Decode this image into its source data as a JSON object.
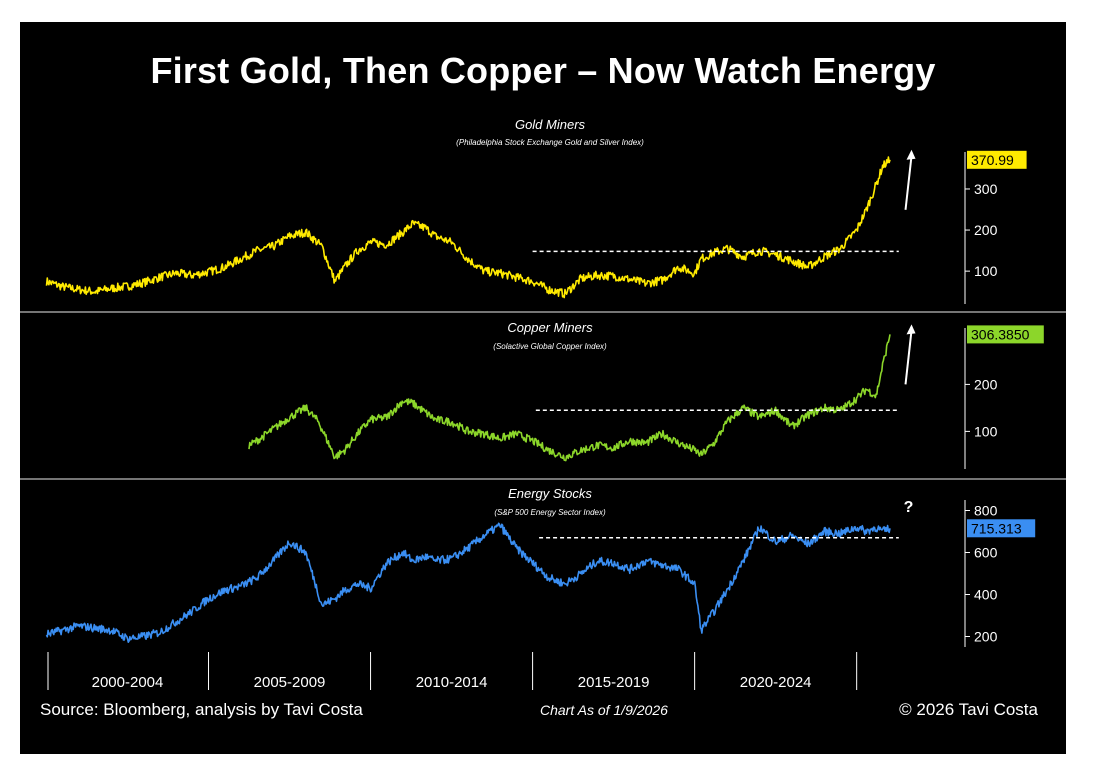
{
  "title": "First Gold, Then Copper – Now Watch Energy",
  "footer": {
    "source": "Source: Bloomberg, analysis by Tavi Costa",
    "date": "Chart As of 1/9/2026",
    "copyright": "© 2026 Tavi Costa"
  },
  "colors": {
    "background": "#000000",
    "gold": "#ffea00",
    "copper": "#8cd62a",
    "energy": "#3a8ef2",
    "axis": "#ffffff"
  },
  "chart_data": [
    {
      "type": "line",
      "name": "gold",
      "title": "Gold Miners",
      "subtitle": "(Philadelphia Stock Exchange Gold and Silver Index)",
      "color": "#ffea00",
      "last_value_label": "370.99",
      "ylim": [
        20,
        390
      ],
      "yticks": [
        100,
        200,
        300
      ],
      "ytick_labels": [
        "100",
        "200",
        "300"
      ],
      "reference_line": {
        "value": 148,
        "x_start": 2015.0
      },
      "annotation": "up-arrow",
      "x": [
        2000.0,
        2000.5,
        2001.0,
        2001.5,
        2002.0,
        2002.5,
        2003.0,
        2003.5,
        2004.0,
        2004.5,
        2005.0,
        2005.5,
        2006.0,
        2006.5,
        2007.0,
        2007.5,
        2008.0,
        2008.5,
        2008.9,
        2009.2,
        2009.6,
        2010.0,
        2010.5,
        2011.0,
        2011.3,
        2011.7,
        2012.0,
        2012.5,
        2013.0,
        2013.5,
        2014.0,
        2014.5,
        2015.0,
        2015.5,
        2016.0,
        2016.5,
        2017.0,
        2017.5,
        2018.0,
        2018.5,
        2019.0,
        2019.5,
        2020.0,
        2020.2,
        2020.6,
        2021.0,
        2021.5,
        2022.0,
        2022.5,
        2023.0,
        2023.5,
        2024.0,
        2024.5,
        2025.0,
        2025.3,
        2025.6,
        2025.8,
        2026.03
      ],
      "values": [
        75,
        62,
        55,
        50,
        58,
        63,
        72,
        85,
        95,
        90,
        98,
        110,
        130,
        150,
        160,
        185,
        195,
        160,
        75,
        110,
        150,
        170,
        165,
        195,
        215,
        205,
        185,
        170,
        130,
        100,
        95,
        85,
        75,
        55,
        45,
        82,
        90,
        88,
        80,
        70,
        78,
        110,
        95,
        130,
        145,
        155,
        135,
        150,
        140,
        125,
        110,
        135,
        155,
        200,
        250,
        310,
        355,
        370.99
      ]
    },
    {
      "type": "line",
      "name": "copper",
      "title": "Copper Miners",
      "subtitle": "(Solactive Global Copper Index)",
      "color": "#8cd62a",
      "last_value_label": "306.3850",
      "ylim": [
        20,
        320
      ],
      "yticks": [
        100,
        200
      ],
      "ytick_labels": [
        "100",
        "200"
      ],
      "reference_line": {
        "value": 145,
        "x_start": 2015.1
      },
      "annotation": "up-arrow",
      "x": [
        2006.25,
        2006.6,
        2007.0,
        2007.5,
        2008.0,
        2008.4,
        2008.9,
        2009.2,
        2009.6,
        2010.0,
        2010.5,
        2011.0,
        2011.3,
        2011.7,
        2012.0,
        2012.5,
        2013.0,
        2013.5,
        2014.0,
        2014.5,
        2015.0,
        2015.5,
        2016.0,
        2016.5,
        2017.0,
        2017.5,
        2018.0,
        2018.5,
        2019.0,
        2019.5,
        2020.0,
        2020.2,
        2020.6,
        2021.0,
        2021.5,
        2022.0,
        2022.5,
        2023.0,
        2023.5,
        2024.0,
        2024.5,
        2025.0,
        2025.3,
        2025.6,
        2025.8,
        2026.03
      ],
      "values": [
        70,
        85,
        105,
        130,
        150,
        120,
        45,
        60,
        95,
        125,
        130,
        165,
        160,
        140,
        125,
        120,
        100,
        95,
        85,
        95,
        80,
        60,
        45,
        60,
        70,
        65,
        80,
        75,
        95,
        75,
        60,
        50,
        75,
        120,
        150,
        130,
        145,
        110,
        135,
        150,
        145,
        170,
        190,
        175,
        240,
        306.385
      ]
    },
    {
      "type": "line",
      "name": "energy",
      "title": "Energy Stocks",
      "subtitle": "(S&P 500 Energy Sector Index)",
      "color": "#3a8ef2",
      "last_value_label": "715.313",
      "ylim": [
        150,
        850
      ],
      "yticks": [
        200,
        400,
        600,
        800
      ],
      "ytick_labels": [
        "200",
        "400",
        "600",
        "800"
      ],
      "reference_line": {
        "value": 670,
        "x_start": 2015.2
      },
      "annotation": "?",
      "x": [
        2000.0,
        2000.5,
        2001.0,
        2001.5,
        2002.0,
        2002.5,
        2003.0,
        2003.5,
        2004.0,
        2004.5,
        2005.0,
        2005.5,
        2006.0,
        2006.5,
        2007.0,
        2007.5,
        2008.0,
        2008.5,
        2008.9,
        2009.2,
        2009.6,
        2010.0,
        2010.5,
        2011.0,
        2011.3,
        2011.7,
        2012.0,
        2012.5,
        2013.0,
        2013.5,
        2014.0,
        2014.5,
        2015.0,
        2015.5,
        2016.0,
        2016.5,
        2017.0,
        2017.5,
        2018.0,
        2018.5,
        2019.0,
        2019.5,
        2020.0,
        2020.2,
        2020.6,
        2021.0,
        2021.5,
        2022.0,
        2022.5,
        2023.0,
        2023.5,
        2024.0,
        2024.5,
        2025.0,
        2025.3,
        2025.6,
        2025.8,
        2026.03
      ],
      "values": [
        210,
        230,
        250,
        240,
        230,
        190,
        200,
        220,
        270,
        320,
        380,
        420,
        440,
        480,
        560,
        650,
        600,
        350,
        380,
        420,
        450,
        430,
        550,
        600,
        560,
        580,
        560,
        570,
        620,
        680,
        730,
        620,
        550,
        480,
        450,
        500,
        560,
        550,
        520,
        560,
        540,
        520,
        450,
        230,
        320,
        420,
        560,
        720,
        650,
        680,
        640,
        700,
        690,
        720,
        700,
        720,
        700,
        715.313
      ]
    }
  ],
  "x_axis": {
    "range": [
      1999.8,
      2026.8
    ],
    "separators": [
      2005.0,
      2010.0,
      2015.0,
      2020.0,
      2025.0
    ],
    "period_labels": [
      {
        "label": "2000-2004",
        "center": 2002.5
      },
      {
        "label": "2005-2009",
        "center": 2007.5
      },
      {
        "label": "2010-2014",
        "center": 2012.5
      },
      {
        "label": "2015-2019",
        "center": 2017.5
      },
      {
        "label": "2020-2024",
        "center": 2022.5
      }
    ]
  }
}
